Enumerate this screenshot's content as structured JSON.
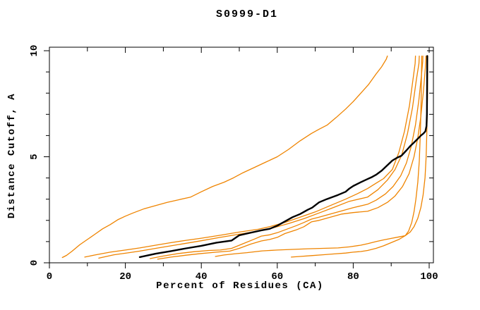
{
  "title": "S0999-D1",
  "chart_data": {
    "type": "line",
    "title": "S0999-D1",
    "xlabel": "Percent of Residues (CA)",
    "ylabel": "Distance Cutoff, A",
    "xlim": [
      0,
      100
    ],
    "ylim": [
      0,
      10
    ],
    "grid": false,
    "legend_position": "none",
    "frame": "box",
    "x_major_ticks": [
      0,
      20,
      40,
      60,
      80,
      100
    ],
    "x_tick_labels": [
      "0",
      "20",
      "40",
      "60",
      "80",
      "100"
    ],
    "x_minor_ticks": [
      10,
      30,
      50,
      70,
      90
    ],
    "y_major_ticks": [
      0,
      5,
      10
    ],
    "y_tick_labels": [
      "0",
      "5",
      "10"
    ],
    "y_minor_ticks": [
      1,
      2,
      3,
      4,
      6,
      7,
      8,
      9
    ],
    "colors": {
      "highlight_model": "#000000",
      "other_models": "#ef8400"
    },
    "series": [
      {
        "name": "model-black-highlight",
        "color": "#000000",
        "width": 2.4,
        "points": [
          [
            23.8,
            0.27
          ],
          [
            28,
            0.43
          ],
          [
            32,
            0.55
          ],
          [
            36,
            0.68
          ],
          [
            40,
            0.8
          ],
          [
            44,
            0.95
          ],
          [
            48,
            1.05
          ],
          [
            50,
            1.3
          ],
          [
            52,
            1.38
          ],
          [
            55.8,
            1.53
          ],
          [
            58,
            1.6
          ],
          [
            60,
            1.75
          ],
          [
            62,
            1.95
          ],
          [
            64,
            2.15
          ],
          [
            66,
            2.3
          ],
          [
            68,
            2.5
          ],
          [
            69.2,
            2.6
          ],
          [
            71,
            2.85
          ],
          [
            73,
            3.0
          ],
          [
            74.5,
            3.1
          ],
          [
            76,
            3.2
          ],
          [
            78,
            3.35
          ],
          [
            79,
            3.5
          ],
          [
            80,
            3.62
          ],
          [
            82,
            3.8
          ],
          [
            83.8,
            3.95
          ],
          [
            85,
            4.05
          ],
          [
            86,
            4.15
          ],
          [
            87.5,
            4.35
          ],
          [
            89,
            4.6
          ],
          [
            90.3,
            4.82
          ],
          [
            91.5,
            4.95
          ],
          [
            92.7,
            5.05
          ],
          [
            94,
            5.3
          ],
          [
            95,
            5.5
          ],
          [
            95.9,
            5.65
          ],
          [
            97,
            5.85
          ],
          [
            97.8,
            6.0
          ],
          [
            98.5,
            6.1
          ],
          [
            99,
            6.2
          ],
          [
            99.3,
            6.45
          ],
          [
            99.4,
            7.0
          ],
          [
            99.45,
            8.0
          ],
          [
            99.5,
            9.75
          ]
        ]
      },
      {
        "name": "model-orange-steep",
        "color": "#ef8400",
        "width": 1.3,
        "points": [
          [
            3.4,
            0.25
          ],
          [
            4.5,
            0.35
          ],
          [
            6,
            0.55
          ],
          [
            8,
            0.85
          ],
          [
            10,
            1.1
          ],
          [
            12,
            1.35
          ],
          [
            14,
            1.6
          ],
          [
            16,
            1.8
          ],
          [
            18,
            2.03
          ],
          [
            20,
            2.2
          ],
          [
            22,
            2.35
          ],
          [
            25,
            2.55
          ],
          [
            28,
            2.7
          ],
          [
            31,
            2.85
          ],
          [
            34,
            2.97
          ],
          [
            37.2,
            3.1
          ],
          [
            40,
            3.35
          ],
          [
            43,
            3.6
          ],
          [
            46,
            3.8
          ],
          [
            48.4,
            4.0
          ],
          [
            51,
            4.25
          ],
          [
            54,
            4.5
          ],
          [
            57,
            4.75
          ],
          [
            60,
            5.0
          ],
          [
            63,
            5.35
          ],
          [
            66,
            5.75
          ],
          [
            69,
            6.1
          ],
          [
            71,
            6.3
          ],
          [
            73.2,
            6.5
          ],
          [
            75.5,
            6.85
          ],
          [
            78,
            7.25
          ],
          [
            80,
            7.6
          ],
          [
            82,
            8.0
          ],
          [
            84,
            8.4
          ],
          [
            86,
            8.9
          ],
          [
            87.5,
            9.25
          ],
          [
            88.7,
            9.6
          ],
          [
            89,
            9.75
          ]
        ]
      },
      {
        "name": "model-orange-2",
        "color": "#ef8400",
        "width": 1.3,
        "points": [
          [
            9.3,
            0.27
          ],
          [
            12,
            0.37
          ],
          [
            16,
            0.5
          ],
          [
            20,
            0.6
          ],
          [
            23.8,
            0.7
          ],
          [
            28,
            0.83
          ],
          [
            32,
            0.95
          ],
          [
            36,
            1.06
          ],
          [
            40,
            1.16
          ],
          [
            45,
            1.3
          ],
          [
            50,
            1.45
          ],
          [
            55,
            1.58
          ],
          [
            58,
            1.7
          ],
          [
            62,
            1.9
          ],
          [
            66,
            2.15
          ],
          [
            70,
            2.4
          ],
          [
            74,
            2.7
          ],
          [
            78,
            3.0
          ],
          [
            81,
            3.25
          ],
          [
            83.8,
            3.5
          ],
          [
            86,
            3.75
          ],
          [
            88,
            3.97
          ],
          [
            90.3,
            4.4
          ],
          [
            92,
            5.2
          ],
          [
            93.5,
            6.2
          ],
          [
            94.8,
            7.4
          ],
          [
            95.7,
            8.6
          ],
          [
            96.3,
            9.4
          ],
          [
            96.4,
            9.75
          ]
        ]
      },
      {
        "name": "model-orange-3",
        "color": "#ef8400",
        "width": 1.3,
        "points": [
          [
            13,
            0.22
          ],
          [
            17,
            0.38
          ],
          [
            21,
            0.48
          ],
          [
            23.8,
            0.55
          ],
          [
            28,
            0.68
          ],
          [
            32,
            0.8
          ],
          [
            36,
            0.92
          ],
          [
            40,
            1.04
          ],
          [
            45,
            1.2
          ],
          [
            50,
            1.35
          ],
          [
            55,
            1.5
          ],
          [
            59,
            1.65
          ],
          [
            63,
            1.85
          ],
          [
            67,
            2.08
          ],
          [
            71,
            2.35
          ],
          [
            75,
            2.62
          ],
          [
            79,
            2.9
          ],
          [
            83.8,
            3.1
          ],
          [
            86.5,
            3.45
          ],
          [
            89,
            3.9
          ],
          [
            91,
            4.4
          ],
          [
            92.8,
            5.1
          ],
          [
            94.3,
            6.1
          ],
          [
            95.6,
            7.3
          ],
          [
            96.6,
            8.6
          ],
          [
            97.3,
            9.4
          ],
          [
            97.4,
            9.75
          ]
        ]
      },
      {
        "name": "model-orange-4",
        "color": "#ef8400",
        "width": 1.3,
        "points": [
          [
            26.5,
            0.2
          ],
          [
            30,
            0.32
          ],
          [
            34,
            0.44
          ],
          [
            38,
            0.52
          ],
          [
            42,
            0.58
          ],
          [
            45,
            0.6
          ],
          [
            48,
            0.68
          ],
          [
            51,
            0.9
          ],
          [
            54,
            1.12
          ],
          [
            55.8,
            1.26
          ],
          [
            58,
            1.32
          ],
          [
            60,
            1.42
          ],
          [
            62,
            1.55
          ],
          [
            65,
            1.75
          ],
          [
            67,
            1.9
          ],
          [
            69,
            2.06
          ],
          [
            71,
            2.15
          ],
          [
            74,
            2.3
          ],
          [
            77,
            2.45
          ],
          [
            80,
            2.6
          ],
          [
            83.8,
            2.76
          ],
          [
            86,
            2.95
          ],
          [
            88.5,
            3.25
          ],
          [
            90.5,
            3.6
          ],
          [
            92.5,
            4.1
          ],
          [
            94,
            4.7
          ],
          [
            95.3,
            5.5
          ],
          [
            96.4,
            6.5
          ],
          [
            97.3,
            7.7
          ],
          [
            98,
            8.9
          ],
          [
            98.3,
            9.5
          ],
          [
            98.35,
            9.75
          ]
        ]
      },
      {
        "name": "model-orange-5",
        "color": "#ef8400",
        "width": 1.3,
        "points": [
          [
            28.5,
            0.17
          ],
          [
            32,
            0.27
          ],
          [
            36,
            0.36
          ],
          [
            40,
            0.44
          ],
          [
            44,
            0.5
          ],
          [
            47.5,
            0.55
          ],
          [
            50,
            0.68
          ],
          [
            53,
            0.88
          ],
          [
            55.8,
            1.03
          ],
          [
            58,
            1.1
          ],
          [
            60,
            1.2
          ],
          [
            62,
            1.38
          ],
          [
            65,
            1.55
          ],
          [
            67,
            1.7
          ],
          [
            69,
            1.93
          ],
          [
            71,
            2.0
          ],
          [
            74,
            2.15
          ],
          [
            77,
            2.3
          ],
          [
            80,
            2.37
          ],
          [
            83.8,
            2.43
          ],
          [
            86.5,
            2.6
          ],
          [
            89,
            2.85
          ],
          [
            91,
            3.15
          ],
          [
            93,
            3.6
          ],
          [
            94.7,
            4.2
          ],
          [
            96,
            5.0
          ],
          [
            97,
            5.9
          ],
          [
            97.8,
            6.9
          ],
          [
            98.5,
            8.1
          ],
          [
            99,
            9.2
          ],
          [
            99.15,
            9.75
          ]
        ]
      },
      {
        "name": "model-orange-low-1",
        "color": "#ef8400",
        "width": 1.3,
        "points": [
          [
            43.7,
            0.3
          ],
          [
            46,
            0.37
          ],
          [
            49,
            0.43
          ],
          [
            52,
            0.48
          ],
          [
            56,
            0.56
          ],
          [
            60,
            0.6
          ],
          [
            64,
            0.63
          ],
          [
            68,
            0.66
          ],
          [
            72,
            0.68
          ],
          [
            76,
            0.7
          ],
          [
            79,
            0.75
          ],
          [
            82,
            0.83
          ],
          [
            83.8,
            0.9
          ],
          [
            86,
            1.0
          ],
          [
            88,
            1.08
          ],
          [
            90,
            1.15
          ],
          [
            92,
            1.22
          ],
          [
            93.7,
            1.28
          ],
          [
            94.6,
            1.5
          ],
          [
            95.4,
            1.9
          ],
          [
            96,
            2.4
          ],
          [
            96.5,
            3.0
          ],
          [
            97,
            3.8
          ],
          [
            97.4,
            4.8
          ],
          [
            97.7,
            6.2
          ],
          [
            97.9,
            7.8
          ],
          [
            98.0,
            9.2
          ],
          [
            98.05,
            9.75
          ]
        ]
      },
      {
        "name": "model-orange-low-2",
        "color": "#ef8400",
        "width": 1.3,
        "points": [
          [
            63.7,
            0.27
          ],
          [
            66,
            0.3
          ],
          [
            69,
            0.34
          ],
          [
            72,
            0.38
          ],
          [
            75,
            0.42
          ],
          [
            78,
            0.46
          ],
          [
            80,
            0.5
          ],
          [
            82,
            0.53
          ],
          [
            83.8,
            0.58
          ],
          [
            86,
            0.68
          ],
          [
            88,
            0.8
          ],
          [
            90,
            0.95
          ],
          [
            92,
            1.1
          ],
          [
            93.7,
            1.28
          ],
          [
            95,
            1.45
          ],
          [
            96,
            1.7
          ],
          [
            97,
            2.1
          ],
          [
            97.8,
            2.6
          ],
          [
            98.4,
            3.2
          ],
          [
            98.9,
            4.0
          ],
          [
            99.2,
            5.0
          ],
          [
            99.4,
            6.3
          ],
          [
            99.55,
            8.0
          ],
          [
            99.6,
            9.3
          ],
          [
            99.62,
            9.75
          ]
        ]
      }
    ]
  }
}
